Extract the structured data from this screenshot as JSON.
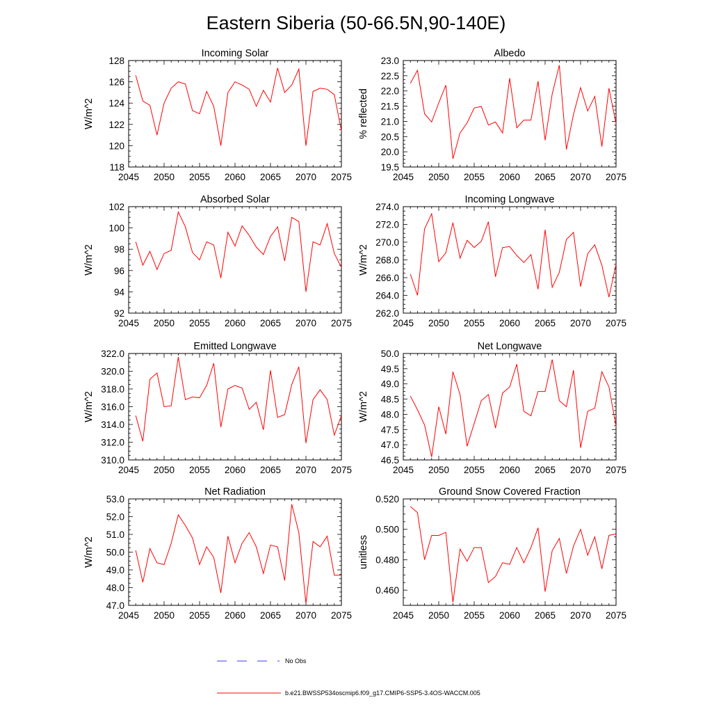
{
  "title": "Eastern Siberia (50-66.5N,90-140E)",
  "colors": {
    "series": "#ff0000",
    "obs": "#3a3aff",
    "axis": "#000000"
  },
  "legend": {
    "obs_label": "No Obs",
    "model_label": "b.e21.BWSSP534oscmip6.f09_g17.CMIP6-SSP5-3.4OS-WACCM.005"
  },
  "chart_data": [
    {
      "type": "line",
      "title": "Incoming Solar",
      "ylabel": "W/m^2",
      "xlim": [
        2045,
        2075
      ],
      "ylim": [
        118,
        128
      ],
      "xticks": [
        2045,
        2050,
        2055,
        2060,
        2065,
        2070,
        2075
      ],
      "yticks": [
        118,
        120,
        122,
        124,
        126,
        128
      ],
      "ytick_decimals": 0,
      "x": [
        2046,
        2047,
        2048,
        2049,
        2050,
        2051,
        2052,
        2053,
        2054,
        2055,
        2056,
        2057,
        2058,
        2059,
        2060,
        2061,
        2062,
        2063,
        2064,
        2065,
        2066,
        2067,
        2068,
        2069,
        2070,
        2071,
        2072,
        2073,
        2074,
        2075
      ],
      "series": [
        {
          "name": "b.e21.BWSSP534oscmip6.f09_g17.CMIP6-SSP5-3.4OS-WACCM.005",
          "values": [
            126.6,
            124.2,
            123.8,
            121.0,
            124.0,
            125.4,
            126.0,
            125.8,
            123.3,
            123.0,
            125.1,
            123.7,
            120.0,
            125.0,
            126.0,
            125.7,
            125.3,
            123.7,
            125.2,
            124.1,
            127.3,
            125.0,
            125.7,
            127.2,
            120.0,
            125.1,
            125.4,
            125.3,
            124.8,
            121.4
          ]
        }
      ]
    },
    {
      "type": "line",
      "title": "Albedo",
      "ylabel": "% reflected",
      "xlim": [
        2045,
        2075
      ],
      "ylim": [
        19.5,
        23.0
      ],
      "xticks": [
        2045,
        2050,
        2055,
        2060,
        2065,
        2070,
        2075
      ],
      "yticks": [
        19.5,
        20.0,
        20.5,
        21.0,
        21.5,
        22.0,
        22.5,
        23.0
      ],
      "ytick_decimals": 1,
      "x": [
        2046,
        2047,
        2048,
        2049,
        2050,
        2051,
        2052,
        2053,
        2054,
        2055,
        2056,
        2057,
        2058,
        2059,
        2060,
        2061,
        2062,
        2063,
        2064,
        2065,
        2066,
        2067,
        2068,
        2069,
        2070,
        2071,
        2072,
        2073,
        2074,
        2075
      ],
      "series": [
        {
          "name": "b.e21.BWSSP534oscmip6.f09_g17.CMIP6-SSP5-3.4OS-WACCM.005",
          "values": [
            22.25,
            22.68,
            21.25,
            20.98,
            21.61,
            22.19,
            19.77,
            20.62,
            20.95,
            21.44,
            21.49,
            20.88,
            20.98,
            20.62,
            22.42,
            20.79,
            21.04,
            21.04,
            22.32,
            20.38,
            21.9,
            22.85,
            20.08,
            21.23,
            22.11,
            21.34,
            21.82,
            20.17,
            22.09,
            20.92
          ]
        }
      ]
    },
    {
      "type": "line",
      "title": "Absorbed Solar",
      "ylabel": "W/m^2",
      "xlim": [
        2045,
        2075
      ],
      "ylim": [
        92,
        102
      ],
      "xticks": [
        2045,
        2050,
        2055,
        2060,
        2065,
        2070,
        2075
      ],
      "yticks": [
        92,
        94,
        96,
        98,
        100,
        102
      ],
      "ytick_decimals": 0,
      "x": [
        2046,
        2047,
        2048,
        2049,
        2050,
        2051,
        2052,
        2053,
        2054,
        2055,
        2056,
        2057,
        2058,
        2059,
        2060,
        2061,
        2062,
        2063,
        2064,
        2065,
        2066,
        2067,
        2068,
        2069,
        2070,
        2071,
        2072,
        2073,
        2074,
        2075
      ],
      "series": [
        {
          "name": "b.e21.BWSSP534oscmip6.f09_g17.CMIP6-SSP5-3.4OS-WACCM.005",
          "values": [
            98.7,
            96.5,
            97.8,
            96.1,
            97.6,
            97.9,
            101.5,
            100.1,
            97.7,
            97.0,
            98.7,
            98.4,
            95.3,
            99.6,
            98.3,
            100.2,
            99.3,
            98.2,
            97.5,
            99.2,
            100.1,
            96.9,
            101.0,
            100.6,
            94.0,
            98.7,
            98.4,
            100.4,
            97.6,
            96.3
          ]
        }
      ]
    },
    {
      "type": "line",
      "title": "Incoming Longwave",
      "ylabel": "W/m^2",
      "xlim": [
        2045,
        2075
      ],
      "ylim": [
        262,
        274
      ],
      "xticks": [
        2045,
        2050,
        2055,
        2060,
        2065,
        2070,
        2075
      ],
      "yticks": [
        262,
        264,
        266,
        268,
        270,
        272,
        274
      ],
      "ytick_decimals": 1,
      "x": [
        2046,
        2047,
        2048,
        2049,
        2050,
        2051,
        2052,
        2053,
        2054,
        2055,
        2056,
        2057,
        2058,
        2059,
        2060,
        2061,
        2062,
        2063,
        2064,
        2065,
        2066,
        2067,
        2068,
        2069,
        2070,
        2071,
        2072,
        2073,
        2074,
        2075
      ],
      "series": [
        {
          "name": "b.e21.BWSSP534oscmip6.f09_g17.CMIP6-SSP5-3.4OS-WACCM.005",
          "values": [
            266.4,
            264.0,
            271.5,
            273.2,
            267.8,
            268.8,
            272.2,
            268.2,
            270.2,
            269.4,
            270.1,
            272.3,
            266.1,
            269.4,
            269.5,
            268.5,
            267.7,
            268.6,
            264.7,
            271.4,
            264.9,
            266.6,
            270.3,
            271.1,
            265.0,
            268.7,
            269.7,
            267.4,
            263.8,
            267.5
          ]
        }
      ]
    },
    {
      "type": "line",
      "title": "Emitted Longwave",
      "ylabel": "W/m^2",
      "xlim": [
        2045,
        2075
      ],
      "ylim": [
        310,
        322
      ],
      "xticks": [
        2045,
        2050,
        2055,
        2060,
        2065,
        2070,
        2075
      ],
      "yticks": [
        310,
        312,
        314,
        316,
        318,
        320,
        322
      ],
      "ytick_decimals": 1,
      "x": [
        2046,
        2047,
        2048,
        2049,
        2050,
        2051,
        2052,
        2053,
        2054,
        2055,
        2056,
        2057,
        2058,
        2059,
        2060,
        2061,
        2062,
        2063,
        2064,
        2065,
        2066,
        2067,
        2068,
        2069,
        2070,
        2071,
        2072,
        2073,
        2074,
        2075
      ],
      "series": [
        {
          "name": "b.e21.BWSSP534oscmip6.f09_g17.CMIP6-SSP5-3.4OS-WACCM.005",
          "values": [
            315.0,
            312.1,
            319.1,
            319.8,
            316.0,
            316.1,
            321.6,
            316.8,
            317.1,
            317.0,
            318.4,
            320.9,
            313.7,
            318.0,
            318.4,
            318.1,
            315.7,
            316.5,
            313.4,
            320.1,
            314.8,
            315.1,
            318.5,
            320.5,
            311.9,
            316.8,
            317.9,
            316.8,
            312.8,
            315.0
          ]
        }
      ]
    },
    {
      "type": "line",
      "title": "Net Longwave",
      "ylabel": "W/m^2",
      "xlim": [
        2045,
        2075
      ],
      "ylim": [
        46.5,
        50.0
      ],
      "xticks": [
        2045,
        2050,
        2055,
        2060,
        2065,
        2070,
        2075
      ],
      "yticks": [
        46.5,
        47.0,
        47.5,
        48.0,
        48.5,
        49.0,
        49.5,
        50.0
      ],
      "ytick_decimals": 1,
      "x": [
        2046,
        2047,
        2048,
        2049,
        2050,
        2051,
        2052,
        2053,
        2054,
        2055,
        2056,
        2057,
        2058,
        2059,
        2060,
        2061,
        2062,
        2063,
        2064,
        2065,
        2066,
        2067,
        2068,
        2069,
        2070,
        2071,
        2072,
        2073,
        2074,
        2075
      ],
      "series": [
        {
          "name": "b.e21.BWSSP534oscmip6.f09_g17.CMIP6-SSP5-3.4OS-WACCM.005",
          "values": [
            48.6,
            48.15,
            47.65,
            46.6,
            48.25,
            47.35,
            49.4,
            48.65,
            46.95,
            47.7,
            48.45,
            48.65,
            47.55,
            48.7,
            48.9,
            49.65,
            48.1,
            47.95,
            48.75,
            48.75,
            49.8,
            48.45,
            48.25,
            49.45,
            46.9,
            48.1,
            48.2,
            49.4,
            48.9,
            47.6
          ]
        }
      ]
    },
    {
      "type": "line",
      "title": "Net Radiation",
      "ylabel": "W/m^2",
      "xlim": [
        2045,
        2075
      ],
      "ylim": [
        47.0,
        53.0
      ],
      "xticks": [
        2045,
        2050,
        2055,
        2060,
        2065,
        2070,
        2075
      ],
      "yticks": [
        47,
        48,
        49,
        50,
        51,
        52,
        53
      ],
      "ytick_decimals": 1,
      "x": [
        2046,
        2047,
        2048,
        2049,
        2050,
        2051,
        2052,
        2053,
        2054,
        2055,
        2056,
        2057,
        2058,
        2059,
        2060,
        2061,
        2062,
        2063,
        2064,
        2065,
        2066,
        2067,
        2068,
        2069,
        2070,
        2071,
        2072,
        2073,
        2074,
        2075
      ],
      "series": [
        {
          "name": "b.e21.BWSSP534oscmip6.f09_g17.CMIP6-SSP5-3.4OS-WACCM.005",
          "values": [
            50.1,
            48.3,
            50.2,
            49.4,
            49.3,
            50.5,
            52.1,
            51.5,
            50.8,
            49.3,
            50.3,
            49.7,
            47.7,
            50.9,
            49.4,
            50.5,
            51.1,
            50.3,
            48.8,
            50.4,
            50.3,
            48.4,
            52.7,
            51.1,
            47.1,
            50.6,
            50.3,
            50.9,
            48.7,
            48.7
          ]
        }
      ]
    },
    {
      "type": "line",
      "title": "Ground Snow Covered Fraction",
      "ylabel": "unitless",
      "xlim": [
        2045,
        2075
      ],
      "ylim": [
        0.45,
        0.52
      ],
      "xticks": [
        2045,
        2050,
        2055,
        2060,
        2065,
        2070,
        2075
      ],
      "yticks": [
        0.46,
        0.48,
        0.5,
        0.52
      ],
      "ytick_decimals": 3,
      "x": [
        2046,
        2047,
        2048,
        2049,
        2050,
        2051,
        2052,
        2053,
        2054,
        2055,
        2056,
        2057,
        2058,
        2059,
        2060,
        2061,
        2062,
        2063,
        2064,
        2065,
        2066,
        2067,
        2068,
        2069,
        2070,
        2071,
        2072,
        2073,
        2074,
        2075
      ],
      "series": [
        {
          "name": "b.e21.BWSSP534oscmip6.f09_g17.CMIP6-SSP5-3.4OS-WACCM.005",
          "values": [
            0.515,
            0.511,
            0.48,
            0.496,
            0.496,
            0.498,
            0.452,
            0.487,
            0.479,
            0.488,
            0.488,
            0.465,
            0.469,
            0.478,
            0.477,
            0.488,
            0.478,
            0.488,
            0.501,
            0.459,
            0.486,
            0.494,
            0.471,
            0.489,
            0.5,
            0.483,
            0.495,
            0.474,
            0.496,
            0.497
          ]
        }
      ]
    }
  ]
}
